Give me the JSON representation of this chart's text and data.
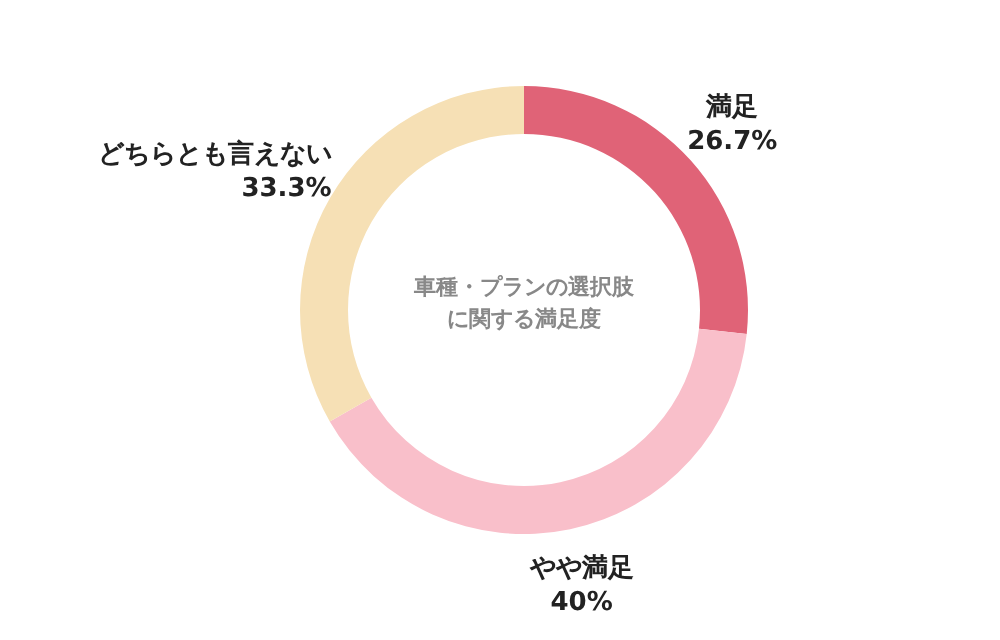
{
  "chart_data": {
    "type": "donut",
    "title": "車種・プランの選択肢に関する満足度",
    "categories": [
      "満足",
      "やや満足",
      "どちらとも言えない"
    ],
    "values": [
      26.7,
      40,
      33.3
    ],
    "value_labels": [
      "26.7%",
      "40%",
      "33.3%"
    ],
    "colors": [
      "#e06377",
      "#f9bfca",
      "#f6e0b5"
    ]
  }
}
